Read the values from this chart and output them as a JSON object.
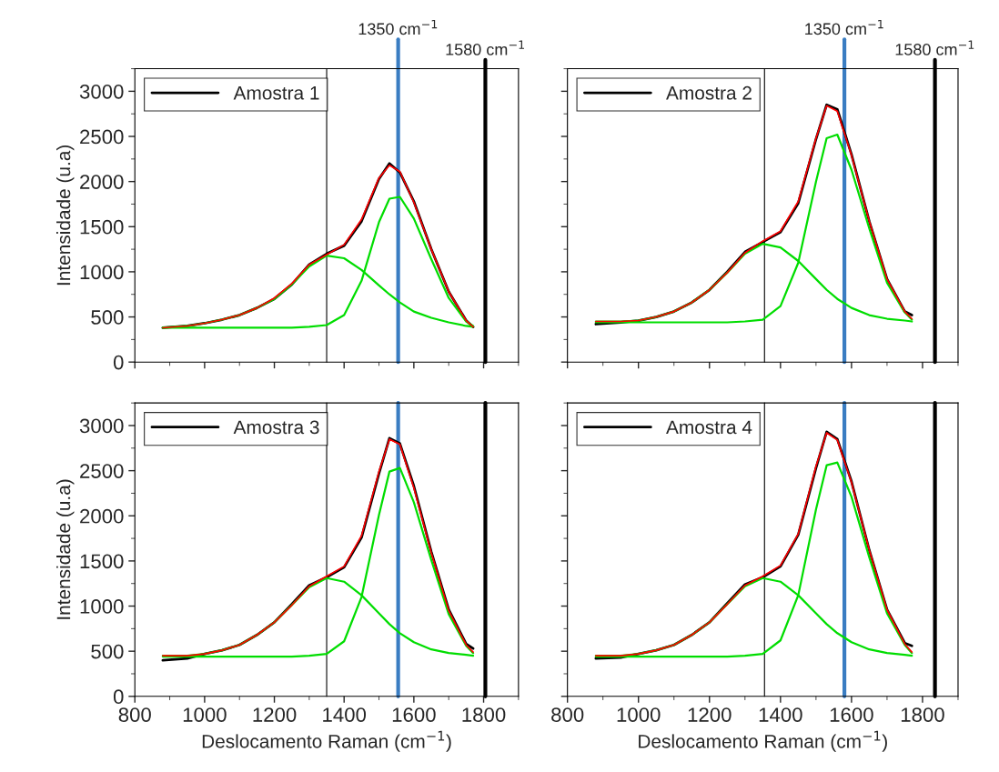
{
  "chart_data": [
    {
      "type": "line",
      "xlabel": null,
      "ylabel": "Intensidade (u.a)",
      "xlim": [
        800,
        1900
      ],
      "ylim": [
        0,
        3250
      ],
      "xticks": [
        800,
        1000,
        1200,
        1400,
        1600,
        1800
      ],
      "yticks": [
        0,
        500,
        1000,
        1500,
        2000,
        2500,
        3000
      ],
      "tick_labels": "y",
      "legend": "top left",
      "grid": false,
      "x": [
        880,
        950,
        1000,
        1050,
        1100,
        1150,
        1200,
        1250,
        1300,
        1350,
        1400,
        1450,
        1500,
        1530,
        1560,
        1600,
        1650,
        1700,
        1750,
        1770
      ],
      "series": [
        {
          "name": "Amostra 1",
          "color": "#000000",
          "values": [
            380,
            400,
            430,
            470,
            520,
            600,
            700,
            860,
            1080,
            1200,
            1290,
            1560,
            2030,
            2200,
            2100,
            1780,
            1250,
            780,
            460,
            390
          ]
        },
        {
          "color": "#ff0000",
          "values": [
            380,
            400,
            430,
            470,
            520,
            600,
            710,
            870,
            1080,
            1190,
            1300,
            1580,
            2040,
            2180,
            2110,
            1770,
            1250,
            780,
            460,
            390
          ]
        },
        {
          "color": "#00dd00",
          "values": [
            380,
            400,
            430,
            470,
            520,
            600,
            700,
            860,
            1060,
            1180,
            1150,
            1020,
            850,
            750,
            660,
            560,
            490,
            440,
            400,
            390
          ]
        },
        {
          "color": "#00dd00",
          "values": [
            380,
            380,
            380,
            380,
            380,
            380,
            380,
            380,
            390,
            410,
            520,
            900,
            1550,
            1810,
            1830,
            1590,
            1140,
            710,
            450,
            400
          ]
        }
      ],
      "ref_lines": [
        {
          "axis": "x",
          "value": 1350,
          "color": "#000000"
        },
        {
          "axis": "x",
          "value": 1555,
          "color": "#3a7dc2",
          "label": "1350 cm$^{−1}$"
        },
        {
          "axis": "x",
          "value": 1805,
          "color": "#000000",
          "label": "1580 cm$^{−1}$"
        }
      ]
    },
    {
      "type": "line",
      "xlim": [
        800,
        1900
      ],
      "ylim": [
        0,
        3250
      ],
      "xticks": [
        800,
        1000,
        1200,
        1400,
        1600,
        1800
      ],
      "yticks": [
        0,
        500,
        1000,
        1500,
        2000,
        2500,
        3000
      ],
      "tick_labels": false,
      "legend": "top left",
      "grid": false,
      "x": [
        880,
        950,
        1000,
        1050,
        1100,
        1150,
        1200,
        1250,
        1300,
        1350,
        1400,
        1450,
        1500,
        1530,
        1560,
        1600,
        1650,
        1700,
        1750,
        1770
      ],
      "series": [
        {
          "name": "Amostra 2",
          "color": "#000000",
          "values": [
            420,
            440,
            460,
            500,
            560,
            660,
            800,
            1000,
            1220,
            1330,
            1440,
            1760,
            2470,
            2850,
            2800,
            2300,
            1560,
            920,
            560,
            520
          ]
        },
        {
          "color": "#ff0000",
          "values": [
            450,
            450,
            460,
            500,
            560,
            660,
            800,
            990,
            1210,
            1340,
            1450,
            1780,
            2480,
            2840,
            2780,
            2290,
            1560,
            920,
            560,
            480
          ]
        },
        {
          "color": "#00dd00",
          "values": [
            450,
            450,
            460,
            500,
            560,
            660,
            800,
            990,
            1200,
            1310,
            1270,
            1120,
            920,
            800,
            700,
            600,
            520,
            480,
            460,
            450
          ]
        },
        {
          "color": "#00dd00",
          "values": [
            440,
            440,
            440,
            440,
            440,
            440,
            440,
            440,
            450,
            470,
            620,
            1100,
            2000,
            2480,
            2520,
            2130,
            1480,
            880,
            550,
            470
          ]
        }
      ],
      "ref_lines": [
        {
          "axis": "x",
          "value": 1355,
          "color": "#000000"
        },
        {
          "axis": "x",
          "value": 1580,
          "color": "#3a7dc2",
          "label": "1350 cm$^{−1}$"
        },
        {
          "axis": "x",
          "value": 1835,
          "color": "#000000",
          "label": "1580 cm$^{−1}$"
        }
      ]
    },
    {
      "type": "line",
      "xlabel": "Deslocamento Raman (cm$^{−1}$)",
      "ylabel": "Intensidade (u.a)",
      "xlim": [
        800,
        1900
      ],
      "ylim": [
        0,
        3250
      ],
      "xticks": [
        800,
        1000,
        1200,
        1400,
        1600,
        1800
      ],
      "yticks": [
        0,
        500,
        1000,
        1500,
        2000,
        2500,
        3000
      ],
      "legend": "top left",
      "grid": false,
      "x": [
        880,
        950,
        1000,
        1050,
        1100,
        1150,
        1200,
        1250,
        1300,
        1350,
        1400,
        1450,
        1500,
        1530,
        1560,
        1600,
        1650,
        1700,
        1750,
        1770
      ],
      "series": [
        {
          "name": "Amostra 3",
          "color": "#000000",
          "values": [
            400,
            420,
            470,
            510,
            570,
            680,
            820,
            1020,
            1230,
            1320,
            1430,
            1760,
            2470,
            2860,
            2800,
            2330,
            1600,
            960,
            580,
            530
          ]
        },
        {
          "color": "#ff0000",
          "values": [
            450,
            450,
            470,
            510,
            570,
            680,
            820,
            1010,
            1220,
            1330,
            1440,
            1780,
            2490,
            2850,
            2790,
            2310,
            1590,
            950,
            570,
            490
          ]
        },
        {
          "color": "#00dd00",
          "values": [
            450,
            450,
            470,
            510,
            570,
            680,
            820,
            1010,
            1210,
            1310,
            1270,
            1120,
            920,
            800,
            700,
            600,
            520,
            480,
            460,
            450
          ]
        },
        {
          "color": "#00dd00",
          "values": [
            440,
            440,
            440,
            440,
            440,
            440,
            440,
            440,
            450,
            470,
            610,
            1100,
            2010,
            2490,
            2530,
            2150,
            1510,
            910,
            560,
            480
          ]
        }
      ],
      "ref_lines": [
        {
          "axis": "x",
          "value": 1350,
          "color": "#000000"
        },
        {
          "axis": "x",
          "value": 1555,
          "color": "#3a7dc2"
        },
        {
          "axis": "x",
          "value": 1805,
          "color": "#000000"
        }
      ]
    },
    {
      "type": "line",
      "xlabel": "Deslocamento Raman (cm$^{−1}$)",
      "xlim": [
        800,
        1900
      ],
      "ylim": [
        0,
        3250
      ],
      "xticks": [
        800,
        1000,
        1200,
        1400,
        1600,
        1800
      ],
      "yticks": [
        0,
        500,
        1000,
        1500,
        2000,
        2500,
        3000
      ],
      "tick_labels": "x",
      "legend": "top left",
      "grid": false,
      "x": [
        880,
        950,
        1000,
        1050,
        1100,
        1150,
        1200,
        1250,
        1300,
        1350,
        1400,
        1450,
        1500,
        1530,
        1560,
        1600,
        1650,
        1700,
        1750,
        1770
      ],
      "series": [
        {
          "name": "Amostra 4",
          "color": "#000000",
          "values": [
            420,
            430,
            470,
            510,
            570,
            680,
            820,
            1030,
            1240,
            1320,
            1440,
            1790,
            2530,
            2930,
            2850,
            2380,
            1620,
            960,
            590,
            560
          ]
        },
        {
          "color": "#ff0000",
          "values": [
            450,
            450,
            470,
            510,
            570,
            680,
            820,
            1020,
            1230,
            1330,
            1450,
            1800,
            2550,
            2920,
            2840,
            2370,
            1620,
            960,
            580,
            490
          ]
        },
        {
          "color": "#00dd00",
          "values": [
            450,
            450,
            470,
            510,
            570,
            680,
            820,
            1020,
            1220,
            1310,
            1270,
            1120,
            920,
            800,
            700,
            600,
            520,
            480,
            460,
            450
          ]
        },
        {
          "color": "#00dd00",
          "values": [
            440,
            440,
            440,
            440,
            440,
            440,
            440,
            440,
            450,
            470,
            620,
            1120,
            2070,
            2560,
            2590,
            2210,
            1540,
            920,
            570,
            480
          ]
        }
      ],
      "ref_lines": [
        {
          "axis": "x",
          "value": 1355,
          "color": "#000000"
        },
        {
          "axis": "x",
          "value": 1580,
          "color": "#3a7dc2"
        },
        {
          "axis": "x",
          "value": 1835,
          "color": "#000000"
        }
      ]
    }
  ]
}
